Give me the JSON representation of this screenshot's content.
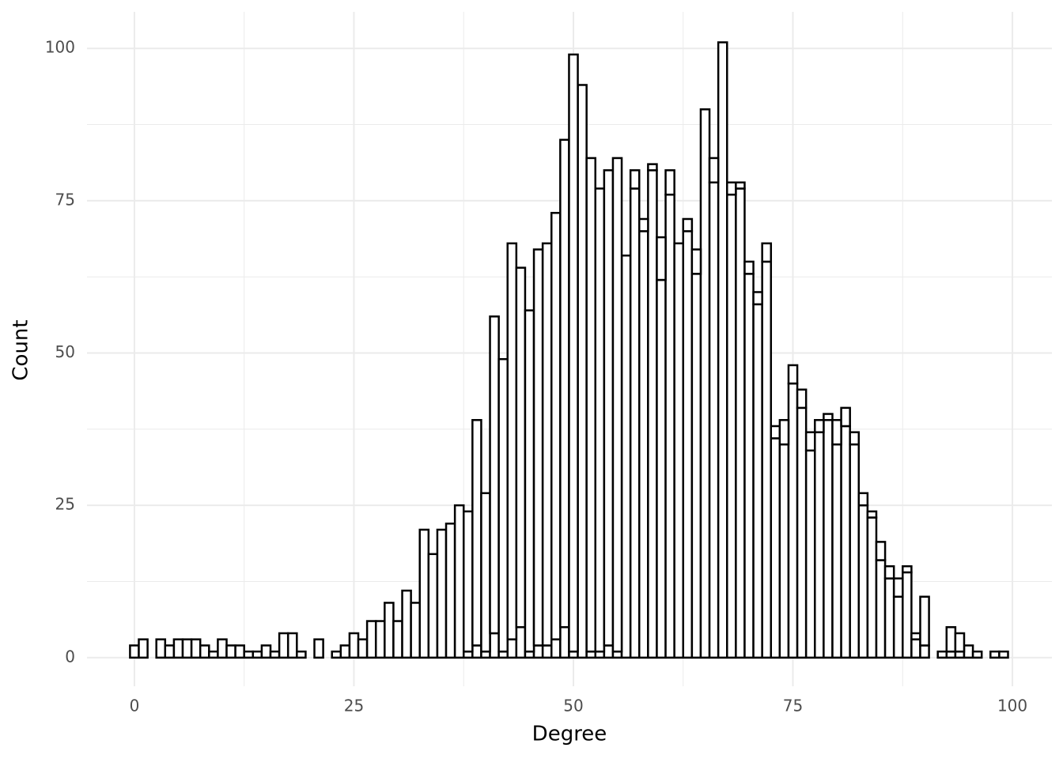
{
  "chart_data": {
    "type": "histogram",
    "x_label": "Degree",
    "y_label": "Count",
    "bins": [
      -0.5,
      0.5,
      1.5,
      2.5,
      3.5,
      4.5,
      5.5,
      6.5,
      7.5,
      8.5,
      9.5,
      10.5,
      11.5,
      12.5,
      13.5,
      14.5,
      15.5,
      16.5,
      17.5,
      18.5,
      19.5,
      20.5,
      21.5,
      22.5,
      23.5,
      24.5,
      25.5,
      26.5,
      27.5,
      28.5,
      29.5,
      30.5,
      31.5,
      32.5,
      33.5,
      34.5,
      35.5,
      36.5,
      37.5,
      38.5,
      39.5,
      40.5,
      41.5,
      42.5,
      43.5,
      44.5,
      45.5,
      46.5,
      47.5,
      48.5,
      49.5,
      50.5,
      51.5,
      52.5,
      53.5,
      54.5,
      55.5,
      56.5,
      57.5,
      58.5,
      59.5,
      60.5,
      61.5,
      62.5,
      63.5,
      64.5,
      65.5,
      66.5,
      67.5,
      68.5,
      69.5,
      70.5,
      71.5,
      72.5,
      73.5,
      74.5,
      75.5,
      76.5,
      77.5,
      78.5,
      79.5,
      80.5,
      81.5,
      82.5,
      83.5,
      84.5,
      85.5,
      86.5,
      87.5,
      88.5,
      89.5,
      90.5,
      91.5,
      92.5,
      93.5,
      94.5,
      95.5,
      96.5,
      97.5,
      98.5,
      99.5
    ],
    "stacked": true,
    "series": [
      {
        "color": "#ffffff",
        "values": [
          2,
          3,
          0,
          3,
          2,
          3,
          3,
          3,
          2,
          1,
          3,
          2,
          2,
          1,
          1,
          2,
          1,
          4,
          4,
          1,
          0,
          3,
          0,
          1,
          2,
          4,
          3,
          6,
          6,
          9,
          6,
          11,
          9,
          21,
          17,
          21,
          22,
          25,
          1,
          2,
          1,
          4,
          1,
          3,
          5,
          1,
          2,
          2,
          3,
          5,
          1,
          94,
          1,
          1,
          2,
          1,
          66,
          77,
          70,
          80,
          62,
          76,
          68,
          70,
          63,
          90,
          78,
          101,
          76,
          77,
          63,
          58,
          65,
          36,
          35,
          45,
          41,
          34,
          37,
          39,
          35,
          38,
          35,
          25,
          23,
          16,
          13,
          10,
          14,
          3,
          2,
          0,
          1,
          1,
          1,
          2,
          1,
          0,
          1,
          1
        ]
      },
      {
        "color": "#ffffff",
        "values": [
          0,
          0,
          0,
          0,
          0,
          0,
          0,
          0,
          0,
          0,
          0,
          0,
          0,
          0,
          0,
          0,
          0,
          0,
          0,
          0,
          0,
          0,
          0,
          0,
          0,
          0,
          0,
          0,
          0,
          0,
          0,
          0,
          0,
          0,
          0,
          0,
          0,
          0,
          23,
          37,
          26,
          52,
          48,
          65,
          59,
          56,
          65,
          66,
          70,
          80,
          98,
          0,
          81,
          76,
          78,
          81,
          0,
          3,
          2,
          1,
          7,
          4,
          0,
          2,
          4,
          0,
          4,
          0,
          2,
          1,
          2,
          2,
          3,
          2,
          4,
          3,
          3,
          3,
          2,
          1,
          4,
          3,
          2,
          2,
          1,
          3,
          2,
          3,
          1,
          1,
          8,
          0,
          0,
          4,
          3,
          0,
          0,
          0,
          0,
          0
        ]
      }
    ],
    "edge_color": "#000000",
    "xlim": [
      -5.4,
      104.5
    ],
    "ylim": [
      -4.7,
      106
    ],
    "xticks": [
      0,
      25,
      50,
      75,
      100
    ],
    "yticks": [
      0,
      25,
      50,
      75,
      100
    ],
    "minor_xticks": [
      12.5,
      37.5,
      62.5,
      87.5
    ],
    "minor_yticks": [
      12.5,
      37.5,
      62.5,
      87.5
    ],
    "grid": true
  }
}
